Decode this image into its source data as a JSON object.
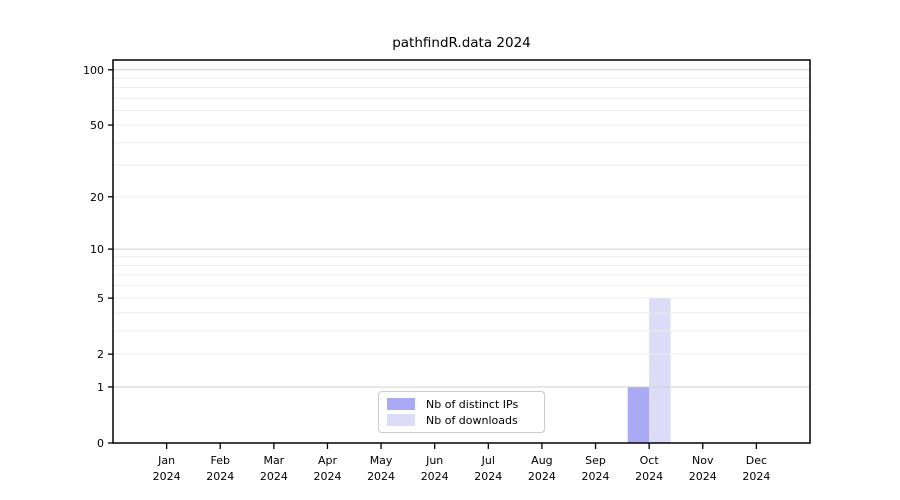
{
  "title": "pathfindR.data 2024",
  "chart_data": {
    "type": "bar",
    "title": "pathfindR.data 2024",
    "categories": [
      "Jan",
      "Feb",
      "Mar",
      "Apr",
      "May",
      "Jun",
      "Jul",
      "Aug",
      "Sep",
      "Oct",
      "Nov",
      "Dec"
    ],
    "category_year": "2024",
    "series": [
      {
        "name": "Nb of distinct IPs",
        "color": "#a9a9f4",
        "values": [
          0,
          0,
          0,
          0,
          0,
          0,
          0,
          0,
          0,
          1,
          0,
          0
        ]
      },
      {
        "name": "Nb of downloads",
        "color": "#dcdcf9",
        "values": [
          0,
          0,
          0,
          0,
          0,
          0,
          0,
          0,
          0,
          5,
          0,
          0
        ]
      }
    ],
    "xlabel": "",
    "ylabel": "",
    "yscale": "log1p",
    "ylim": [
      0,
      112
    ],
    "ytick_labels": [
      0,
      1,
      2,
      5,
      10,
      20,
      50,
      100
    ],
    "grid": "horizontal",
    "grid_major_values": [
      1,
      10,
      100
    ],
    "grid_minor_values": [
      2,
      3,
      4,
      5,
      6,
      7,
      8,
      9,
      20,
      30,
      40,
      50,
      60,
      70,
      80,
      90
    ],
    "legend_position": "lower center",
    "colors": {
      "axis": "#000000",
      "tick_label": "#000000",
      "grid_major": "#cfcfcf",
      "grid_minor": "#ededed",
      "background": "#ffffff"
    }
  }
}
